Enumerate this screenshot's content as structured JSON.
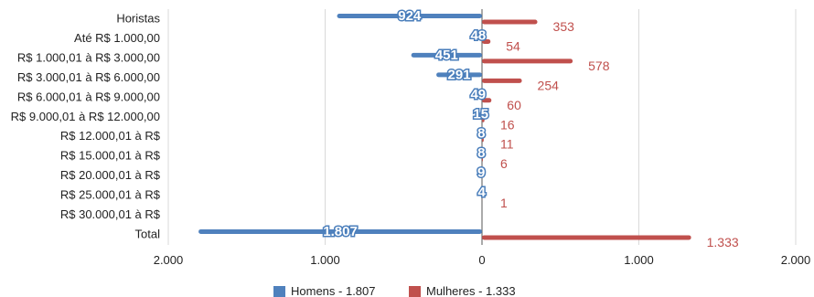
{
  "chart_data": {
    "type": "bar",
    "orientation": "horizontal-diverging",
    "categories": [
      "Horistas",
      "Até R$ 1.000,00",
      "R$ 1.000,01 à R$ 3.000,00",
      "R$ 3.000,01 à R$ 6.000,00",
      "R$ 6.000,01 à R$ 9.000,00",
      "R$ 9.000,01 à R$ 12.000,00",
      "R$ 12.000,01 à R$",
      "R$ 15.000,01 à R$",
      "R$ 20.000,01 à R$",
      "R$ 25.000,01 à R$",
      "R$ 30.000,01 à R$",
      "Total"
    ],
    "series": [
      {
        "name": "Homens",
        "legend_label": "Homens - 1.807",
        "color": "#4f81bd",
        "side": "left",
        "values": [
          924,
          48,
          451,
          291,
          49,
          15,
          8,
          8,
          9,
          4,
          null,
          1807
        ],
        "labels": [
          "924",
          "48",
          "451",
          "291",
          "49",
          "15",
          "8",
          "8",
          "9",
          "4",
          "",
          "1.807"
        ]
      },
      {
        "name": "Mulheres",
        "legend_label": "Mulheres - 1.333",
        "color": "#c0504d",
        "side": "right",
        "values": [
          353,
          54,
          578,
          254,
          60,
          16,
          11,
          6,
          null,
          1,
          null,
          1333
        ],
        "labels": [
          "353",
          "54",
          "578",
          "254",
          "60",
          "16",
          "11",
          "6",
          "",
          "1",
          "",
          "1.333"
        ]
      }
    ],
    "xlim": [
      -2000,
      2000
    ],
    "x_ticks": [
      -2000,
      -1000,
      0,
      1000,
      2000
    ],
    "x_tick_labels": [
      "2.000",
      "1.000",
      "0",
      "1.000",
      "2.000"
    ],
    "grid": true,
    "legend_position": "bottom"
  }
}
